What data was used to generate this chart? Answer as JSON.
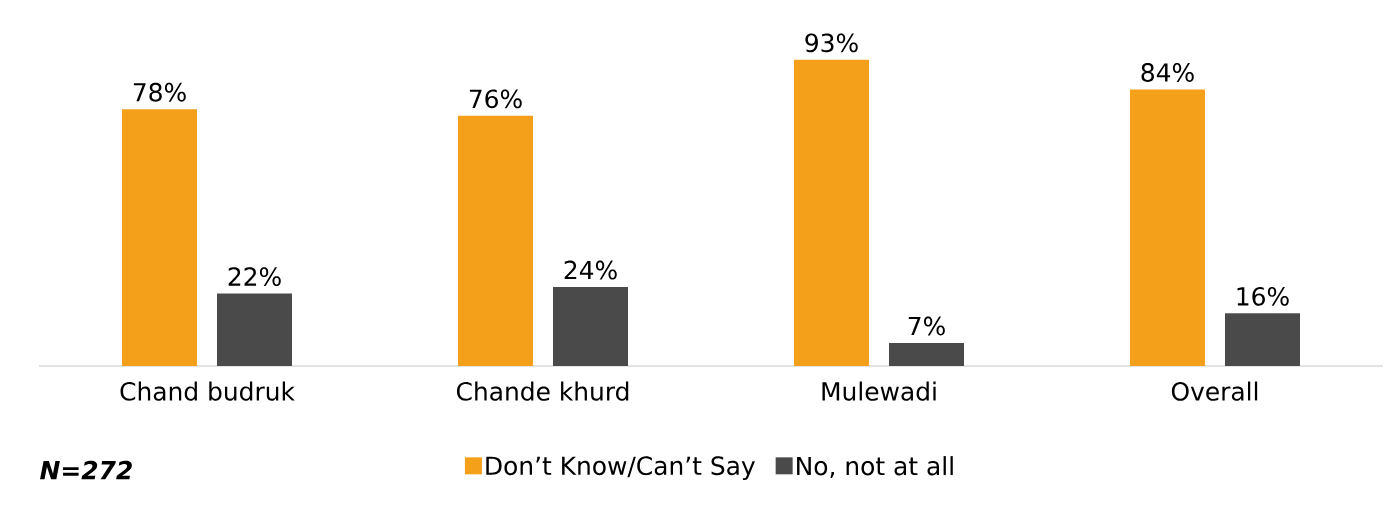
{
  "chart_data": {
    "type": "bar",
    "categories": [
      "Chand budruk",
      "Chande khurd",
      "Mulewadi",
      "Overall"
    ],
    "series": [
      {
        "name": "Don’t Know/Can’t Say",
        "color": "#f5a01a",
        "values": [
          78,
          76,
          93,
          84
        ],
        "value_labels": [
          "78%",
          "76%",
          "93%",
          "84%"
        ]
      },
      {
        "name": "No, not at all",
        "color": "#4a4a4b",
        "values": [
          22,
          24,
          7,
          16
        ],
        "value_labels": [
          "22%",
          "24%",
          "7%",
          "16%"
        ]
      }
    ],
    "legend": "bottom",
    "annotations": [
      "N=272"
    ]
  }
}
